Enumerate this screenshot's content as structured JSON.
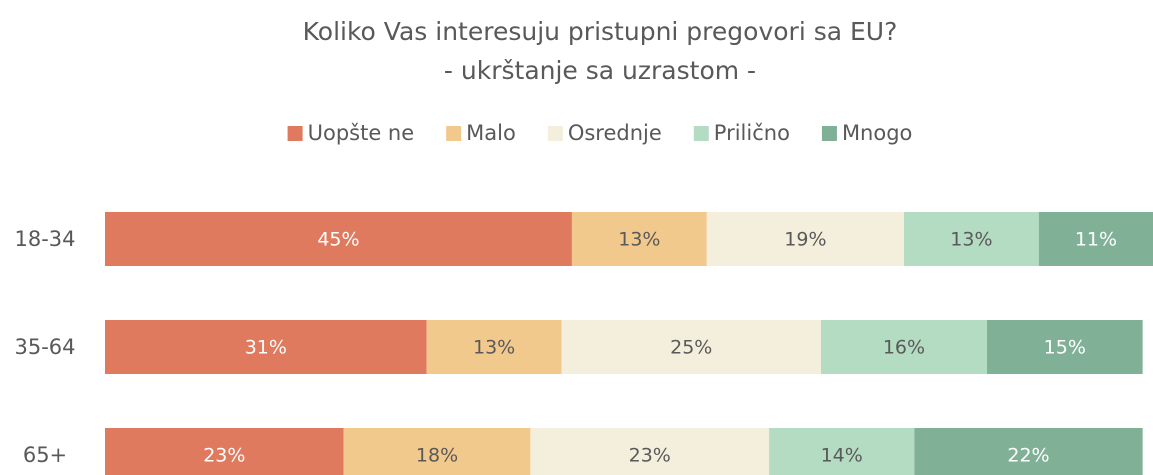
{
  "chart_data": {
    "type": "stacked_barh",
    "title": "Koliko Vas interesuju pristupni pregovori sa EU?",
    "subtitle": "- ukrštanje sa uzrastom -",
    "categories": [
      "18-34",
      "35-64",
      "65+"
    ],
    "xlim": [
      0,
      101
    ],
    "legend": "top",
    "series": [
      {
        "name": "Uopšte ne",
        "color": "#e07a5f",
        "label_color": "#ffffff",
        "values": [
          45,
          31,
          23
        ],
        "value_labels": [
          "45%",
          "31%",
          "23%"
        ]
      },
      {
        "name": "Malo",
        "color": "#f2c98d",
        "label_color": "#595959",
        "values": [
          13,
          13,
          18
        ],
        "value_labels": [
          "13%",
          "13%",
          "18%"
        ]
      },
      {
        "name": "Osrednje",
        "color": "#f4efdc",
        "label_color": "#595959",
        "values": [
          19,
          25,
          23
        ],
        "value_labels": [
          "19%",
          "25%",
          "23%"
        ]
      },
      {
        "name": "Prilično",
        "color": "#b4dcc3",
        "label_color": "#595959",
        "values": [
          13,
          16,
          14
        ],
        "value_labels": [
          "13%",
          "16%",
          "14%"
        ]
      },
      {
        "name": "Mnogo",
        "color": "#80b197",
        "label_color": "#ffffff",
        "values": [
          11,
          15,
          22
        ],
        "value_labels": [
          "11%",
          "15%",
          "22%"
        ]
      }
    ]
  }
}
